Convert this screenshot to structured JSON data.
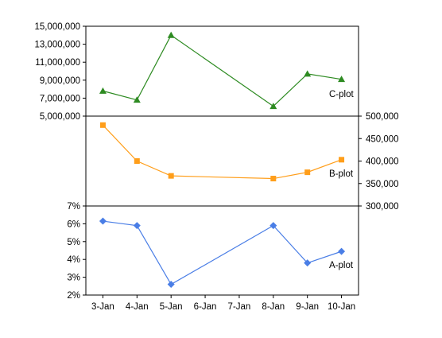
{
  "chart_data": [
    {
      "type": "line",
      "name_label": "C-plot",
      "color": "#2e8b22",
      "marker": "triangle",
      "axis_side": "left",
      "ylim": [
        5000000,
        15000000
      ],
      "yticks": [
        "15,000,000",
        "13,000,000",
        "11,000,000",
        "9,000,000",
        "7,000,000",
        "5,000,000"
      ],
      "ytick_values": [
        15000000,
        13000000,
        11000000,
        9000000,
        7000000,
        5000000
      ],
      "x": [
        "3-Jan",
        "4-Jan",
        "5-Jan",
        "8-Jan",
        "9-Jan",
        "10-Jan"
      ],
      "values": [
        7800000,
        6800000,
        14000000,
        6100000,
        9700000,
        9100000
      ]
    },
    {
      "type": "line",
      "name_label": "B-plot",
      "color": "#ff9e1a",
      "marker": "square",
      "axis_side": "right",
      "ylim": [
        300000,
        500000
      ],
      "yticks": [
        "500,000",
        "450,000",
        "400,000",
        "350,000",
        "300,000"
      ],
      "ytick_values": [
        500000,
        450000,
        400000,
        350000,
        300000
      ],
      "x": [
        "3-Jan",
        "4-Jan",
        "5-Jan",
        "8-Jan",
        "9-Jan",
        "10-Jan"
      ],
      "values": [
        480000,
        400000,
        367000,
        361000,
        375000,
        403000
      ]
    },
    {
      "type": "line",
      "name_label": "A-plot",
      "color": "#4a7ee6",
      "marker": "diamond",
      "axis_side": "left",
      "ylim": [
        0.02,
        0.07
      ],
      "yticks": [
        "7%",
        "6%",
        "5%",
        "4%",
        "3%",
        "2%"
      ],
      "ytick_values": [
        0.07,
        0.06,
        0.05,
        0.04,
        0.03,
        0.02
      ],
      "x": [
        "3-Jan",
        "4-Jan",
        "5-Jan",
        "8-Jan",
        "9-Jan",
        "10-Jan"
      ],
      "values": [
        0.0615,
        0.059,
        0.026,
        0.059,
        0.038,
        0.0445
      ]
    }
  ],
  "x_axis": {
    "categories": [
      "3-Jan",
      "4-Jan",
      "5-Jan",
      "6-Jan",
      "7-Jan",
      "8-Jan",
      "9-Jan",
      "10-Jan"
    ]
  }
}
